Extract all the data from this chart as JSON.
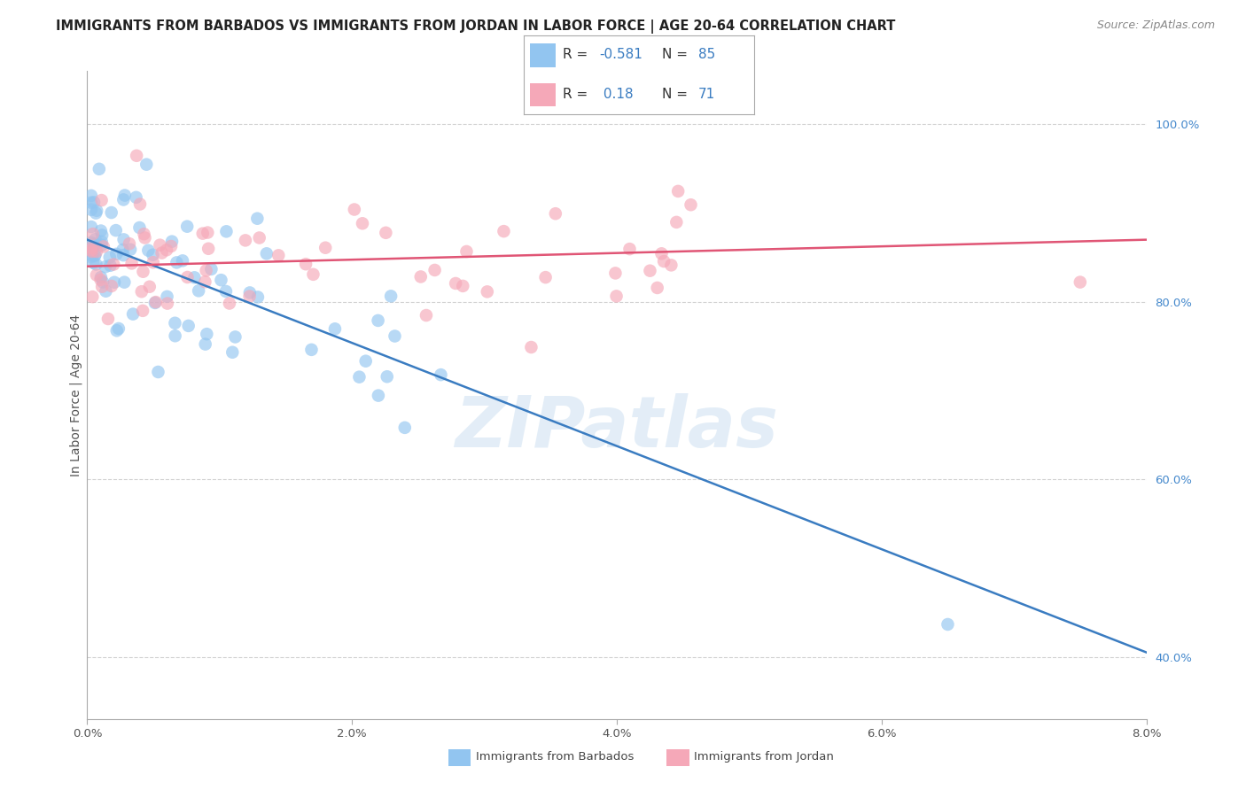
{
  "title": "IMMIGRANTS FROM BARBADOS VS IMMIGRANTS FROM JORDAN IN LABOR FORCE | AGE 20-64 CORRELATION CHART",
  "source": "Source: ZipAtlas.com",
  "ylabel": "In Labor Force | Age 20-64",
  "xlim": [
    0.0,
    0.08
  ],
  "ylim": [
    0.33,
    1.06
  ],
  "xtick_labels": [
    "0.0%",
    "2.0%",
    "4.0%",
    "6.0%",
    "8.0%"
  ],
  "xtick_values": [
    0.0,
    0.02,
    0.04,
    0.06,
    0.08
  ],
  "ytick_labels": [
    "40.0%",
    "60.0%",
    "80.0%",
    "100.0%"
  ],
  "ytick_values": [
    0.4,
    0.6,
    0.8,
    1.0
  ],
  "barbados_color": "#92c5f0",
  "jordan_color": "#f5a8b8",
  "barbados_line_color": "#3a7cc1",
  "jordan_line_color": "#e05575",
  "R_barbados": -0.581,
  "N_barbados": 85,
  "R_jordan": 0.18,
  "N_jordan": 71,
  "watermark": "ZIPatlas",
  "legend_label_barbados": "Immigrants from Barbados",
  "legend_label_jordan": "Immigrants from Jordan",
  "barbados_line_x0": 0.0,
  "barbados_line_y0": 0.87,
  "barbados_line_x1": 0.08,
  "barbados_line_y1": 0.405,
  "jordan_line_x0": 0.0,
  "jordan_line_y0": 0.84,
  "jordan_line_x1": 0.08,
  "jordan_line_y1": 0.87,
  "grid_color": "#cccccc",
  "background_color": "#ffffff",
  "title_fontsize": 10.5,
  "source_fontsize": 9,
  "axis_label_fontsize": 10,
  "tick_fontsize": 9.5,
  "legend_fontsize": 11,
  "watermark_color": "#c8ddf0",
  "watermark_alpha": 0.5,
  "scatter_size": 110,
  "scatter_alpha": 0.65
}
